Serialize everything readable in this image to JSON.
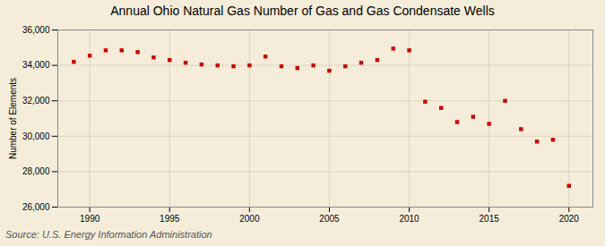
{
  "chart_data": {
    "type": "scatter",
    "title": "Annual Ohio Natural Gas Number of Gas and Gas Condensate Wells",
    "ylabel": "Number of Elements",
    "source": "Source: U.S. Energy Information Administration",
    "x": [
      1989,
      1990,
      1991,
      1992,
      1993,
      1994,
      1995,
      1996,
      1997,
      1998,
      1999,
      2000,
      2001,
      2002,
      2003,
      2004,
      2005,
      2006,
      2007,
      2008,
      2009,
      2010,
      2011,
      2012,
      2013,
      2014,
      2015,
      2016,
      2017,
      2018,
      2019,
      2020
    ],
    "values": [
      34200,
      34550,
      34850,
      34850,
      34750,
      34450,
      34300,
      34150,
      34050,
      34000,
      33950,
      34000,
      34500,
      33950,
      33850,
      34000,
      33700,
      33950,
      34150,
      34300,
      34950,
      34850,
      31950,
      31600,
      30800,
      31100,
      30700,
      32000,
      30400,
      29700,
      29800,
      27200
    ],
    "color": "#cc0000",
    "marker": "square",
    "xlim": [
      1988.0,
      2021.5
    ],
    "ylim": [
      26000,
      36000
    ],
    "xticks": [
      1990,
      1995,
      2000,
      2005,
      2010,
      2015,
      2020
    ],
    "yticks": [
      {
        "value": 26000,
        "label": "26,000"
      },
      {
        "value": 28000,
        "label": "28,000"
      },
      {
        "value": 30000,
        "label": "30,000"
      },
      {
        "value": 32000,
        "label": "32,000"
      },
      {
        "value": 34000,
        "label": "34,000"
      },
      {
        "value": 36000,
        "label": "36,000"
      }
    ],
    "grid": true
  }
}
